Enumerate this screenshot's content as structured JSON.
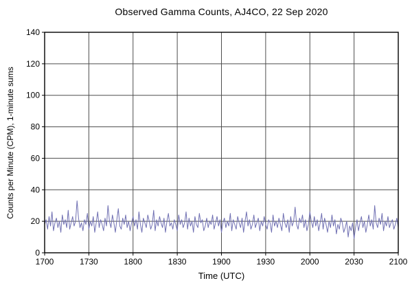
{
  "chart_data": {
    "type": "line",
    "title": "Observed Gamma Counts, AJ4CO, 22 Sep 2020",
    "xlabel": "Time (UTC)",
    "ylabel": "Counts per Minute (CPM), 1-minute sums",
    "x_start_minutes": 0,
    "x_end_minutes": 240,
    "x_tick_minutes": [
      0,
      30,
      60,
      90,
      120,
      150,
      180,
      210,
      240
    ],
    "x_tick_labels": [
      "1700",
      "1730",
      "1800",
      "1830",
      "1900",
      "1930",
      "2000",
      "2030",
      "2100"
    ],
    "ylim": [
      0,
      140
    ],
    "y_ticks": [
      0,
      20,
      40,
      60,
      80,
      100,
      120,
      140
    ],
    "grid": true,
    "legend": "none",
    "line_color": "#6f6fb2",
    "grid_color": "#4d4d4d",
    "frame_color": "#000000",
    "series": [
      {
        "name": "Gamma counts (CPM), 1-minute sums",
        "x_step_minutes": 1,
        "values": [
          18,
          21,
          15,
          23,
          17,
          26,
          14,
          19,
          22,
          16,
          20,
          13,
          24,
          18,
          21,
          16,
          27,
          15,
          19,
          23,
          17,
          20,
          33,
          22,
          16,
          19,
          14,
          21,
          18,
          25,
          15,
          20,
          17,
          23,
          13,
          19,
          26,
          16,
          21,
          18,
          14,
          22,
          17,
          30,
          20,
          16,
          24,
          19,
          13,
          21,
          28,
          17,
          15,
          22,
          18,
          24,
          16,
          20,
          14,
          19,
          23,
          17,
          21,
          15,
          26,
          18,
          13,
          22,
          19,
          16,
          24,
          20,
          15,
          18,
          27,
          14,
          21,
          17,
          23,
          19,
          16,
          22,
          13,
          20,
          25,
          17,
          19,
          15,
          21,
          18,
          14,
          24,
          18,
          21,
          16,
          19,
          26,
          15,
          22,
          17,
          20,
          13,
          23,
          18,
          16,
          25,
          19,
          21,
          14,
          17,
          22,
          16,
          20,
          18,
          24,
          15,
          19,
          23,
          17,
          21,
          13,
          19,
          22,
          16,
          20,
          17,
          25,
          14,
          21,
          18,
          15,
          23,
          19,
          16,
          22,
          13,
          20,
          26,
          17,
          21,
          15,
          18,
          24,
          16,
          19,
          22,
          14,
          20,
          17,
          23,
          18,
          15,
          21,
          19,
          13,
          24,
          17,
          20,
          16,
          22,
          18,
          14,
          25,
          19,
          16,
          21,
          13,
          23,
          17,
          20,
          29,
          18,
          15,
          22,
          19,
          24,
          16,
          21,
          14,
          18,
          26,
          20,
          16,
          23,
          17,
          21,
          14,
          19,
          25,
          15,
          22,
          18,
          13,
          20,
          16,
          24,
          17,
          21,
          12,
          18,
          15,
          22,
          19,
          13,
          16,
          20,
          10,
          17,
          14,
          19,
          9,
          16,
          21,
          14,
          19,
          23,
          16,
          20,
          13,
          18,
          24,
          17,
          21,
          15,
          30,
          19,
          16,
          22,
          18,
          25,
          14,
          20,
          17,
          23,
          16,
          19,
          21,
          15,
          18,
          22,
          16
        ]
      }
    ]
  }
}
